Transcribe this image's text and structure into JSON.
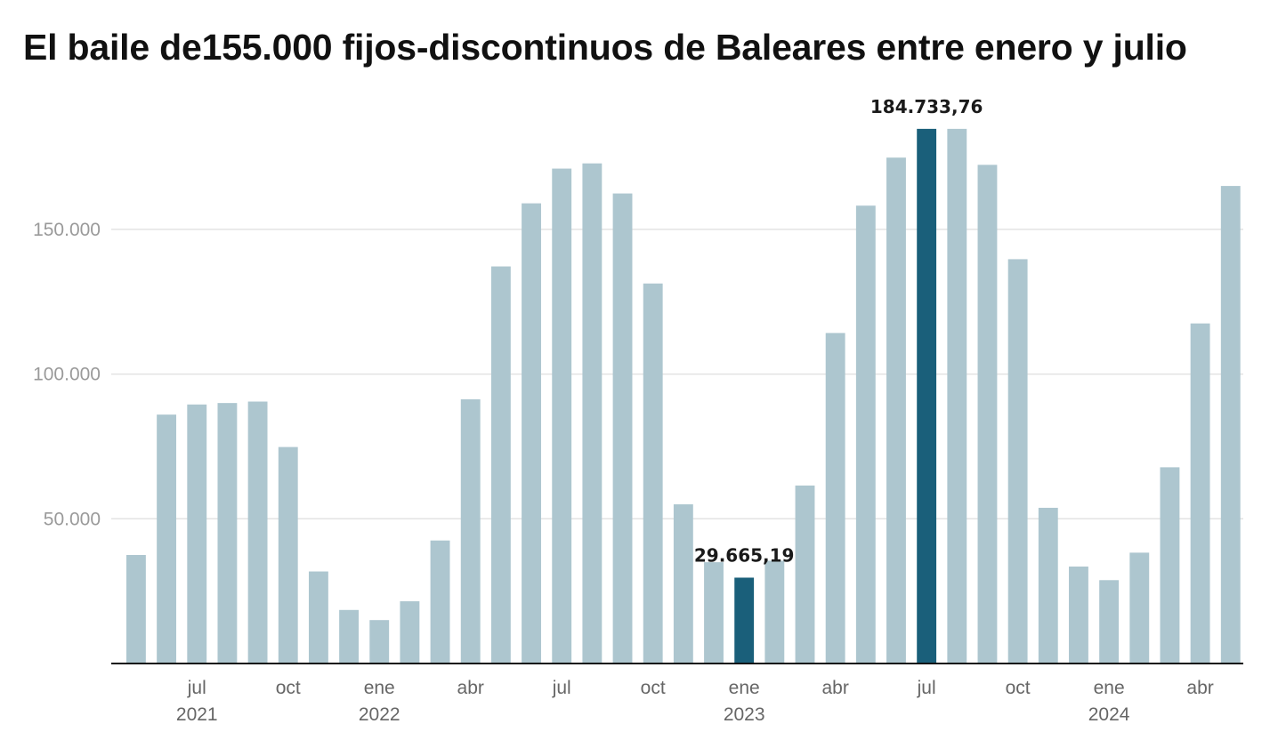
{
  "chart_data": {
    "type": "bar",
    "title": "El baile de155.000 fijos-discontinuos de Baleares entre enero y julio",
    "xlabel": "",
    "ylabel": "",
    "ylim": [
      0,
      190000
    ],
    "yticks": [
      50000,
      100000,
      150000
    ],
    "ytick_labels": [
      "50.000",
      "100.000",
      "150.000"
    ],
    "grid": true,
    "categories": [
      "2021-05",
      "2021-06",
      "2021-07",
      "2021-08",
      "2021-09",
      "2021-10",
      "2021-11",
      "2021-12",
      "2022-01",
      "2022-02",
      "2022-03",
      "2022-04",
      "2022-05",
      "2022-06",
      "2022-07",
      "2022-08",
      "2022-09",
      "2022-10",
      "2022-11",
      "2022-12",
      "2023-01",
      "2023-02",
      "2023-03",
      "2023-04",
      "2023-05",
      "2023-06",
      "2023-07",
      "2023-08",
      "2023-09",
      "2023-10",
      "2023-11",
      "2023-12",
      "2024-01",
      "2024-02",
      "2024-03",
      "2024-04",
      "2024-05"
    ],
    "values": [
      37500,
      86000,
      89500,
      90000,
      90500,
      74800,
      31800,
      18500,
      15000,
      21500,
      42500,
      91300,
      137200,
      159000,
      171000,
      172800,
      162400,
      131300,
      55000,
      35000,
      29665.19,
      35500,
      61500,
      114200,
      158200,
      174800,
      184733.76,
      184733.76,
      172300,
      139700,
      53800,
      33500,
      28800,
      38300,
      67800,
      117500,
      165000
    ],
    "highlighted": [
      "2023-01",
      "2023-07"
    ],
    "data_labels": [
      {
        "category": "2023-01",
        "text": "29.665,19"
      },
      {
        "category": "2023-07",
        "text": "184.733,76"
      }
    ],
    "x_ticks": [
      {
        "category": "2021-07",
        "label": "jul",
        "year": "2021"
      },
      {
        "category": "2021-10",
        "label": "oct",
        "year": ""
      },
      {
        "category": "2022-01",
        "label": "ene",
        "year": "2022"
      },
      {
        "category": "2022-04",
        "label": "abr",
        "year": ""
      },
      {
        "category": "2022-07",
        "label": "jul",
        "year": ""
      },
      {
        "category": "2022-10",
        "label": "oct",
        "year": ""
      },
      {
        "category": "2023-01",
        "label": "ene",
        "year": "2023"
      },
      {
        "category": "2023-04",
        "label": "abr",
        "year": ""
      },
      {
        "category": "2023-07",
        "label": "jul",
        "year": ""
      },
      {
        "category": "2023-10",
        "label": "oct",
        "year": ""
      },
      {
        "category": "2024-01",
        "label": "ene",
        "year": "2024"
      },
      {
        "category": "2024-04",
        "label": "abr",
        "year": ""
      }
    ],
    "colors": {
      "bar": "#adc6cf",
      "highlight": "#1a5f7a",
      "grid": "#e3e3e3",
      "axis": "#111111"
    }
  }
}
